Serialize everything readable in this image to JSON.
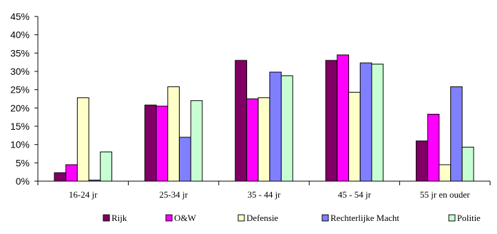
{
  "chart_data": {
    "type": "bar",
    "categories": [
      "16-24 jr",
      "25-34 jr",
      "35 - 44 jr",
      "45 - 54 jr",
      "55 jr en ouder"
    ],
    "series": [
      {
        "name": "Rijk",
        "color": "#800066",
        "values": [
          2.3,
          20.8,
          33.0,
          33.0,
          11.0
        ]
      },
      {
        "name": "O&W",
        "color": "#ff00ff",
        "values": [
          4.5,
          20.5,
          22.5,
          34.5,
          18.3
        ]
      },
      {
        "name": "Defensie",
        "color": "#ffffc8",
        "values": [
          22.8,
          25.8,
          22.8,
          24.3,
          4.5
        ]
      },
      {
        "name": "Rechterlijke Macht",
        "color": "#8080ff",
        "values": [
          0.3,
          12.0,
          29.8,
          32.3,
          25.8
        ]
      },
      {
        "name": "Politie",
        "color": "#c8ffd2",
        "values": [
          8.0,
          22.0,
          28.8,
          32.0,
          9.3
        ]
      }
    ],
    "yticks": [
      "0%",
      "5%",
      "10%",
      "15%",
      "20%",
      "25%",
      "30%",
      "35%",
      "40%",
      "45%"
    ],
    "ylim": [
      0,
      45
    ],
    "title": "",
    "xlabel": "",
    "ylabel": "",
    "grid": false,
    "legend_position": "bottom"
  }
}
